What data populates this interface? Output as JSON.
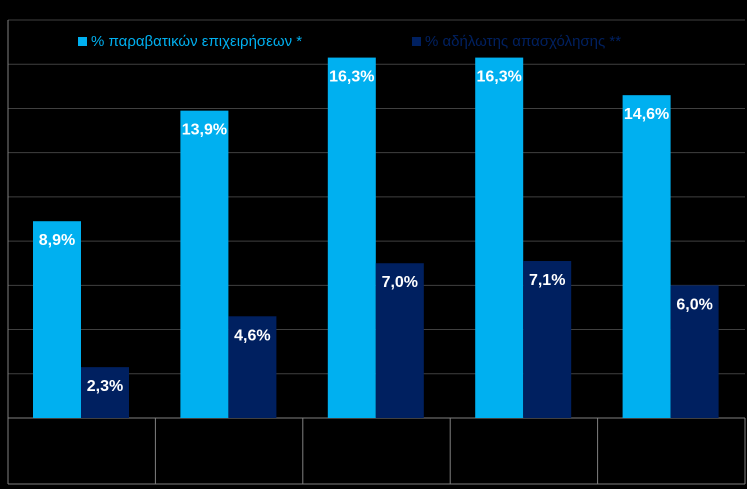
{
  "chart_data": {
    "type": "bar",
    "categories": [
      "",
      "",
      "",
      "",
      ""
    ],
    "series": [
      {
        "name": "% παραβατικών επιχειρήσεων *",
        "values": [
          8.9,
          13.9,
          16.3,
          16.3,
          14.6
        ],
        "labels": [
          "8,9%",
          "13,9%",
          "16,3%",
          "16,3%",
          "14,6%"
        ],
        "color": "#00b0f0"
      },
      {
        "name": "% αδήλωτης απασχόλησης **",
        "values": [
          2.3,
          4.6,
          7.0,
          7.1,
          6.0
        ],
        "labels": [
          "2,3%",
          "4,6%",
          "7,0%",
          "7,1%",
          "6,0%"
        ],
        "color": "#002060"
      }
    ],
    "ylim": [
      0,
      18
    ],
    "grid": true,
    "legend_position": "top",
    "title": "",
    "xlabel": "",
    "ylabel": ""
  },
  "colors": {
    "background": "#000000",
    "gridline": "#404040",
    "axis_line": "#808080",
    "label_text": "#ffffff",
    "legend_text_series1": "#00b0f0",
    "legend_text_series2": "#002060"
  }
}
